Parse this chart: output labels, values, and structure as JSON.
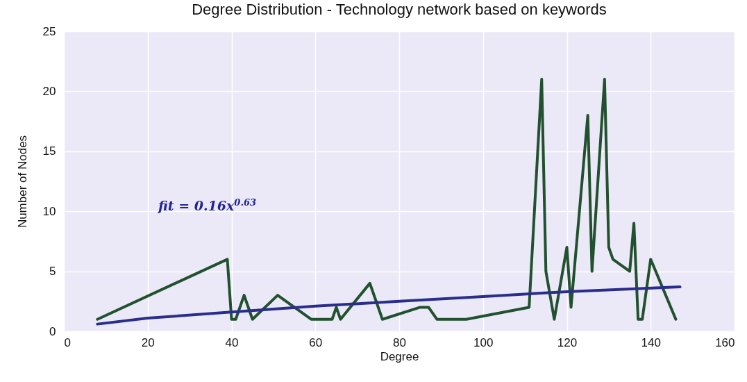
{
  "chart_data": {
    "type": "line",
    "title": "Degree Distribution - Technology network based on keywords",
    "xlabel": "Degree",
    "ylabel": "Number of Nodes",
    "series": [
      {
        "color": "#22512f",
        "x": [
          8,
          39,
          40,
          41,
          43,
          45,
          51,
          55,
          59,
          64,
          65,
          66,
          73,
          76,
          85,
          87,
          89,
          96,
          111,
          114,
          115,
          117,
          120,
          121,
          125,
          126,
          129,
          130,
          131,
          135,
          136,
          137,
          138,
          140,
          146
        ],
        "values": [
          1,
          6,
          1,
          1,
          3,
          1,
          3,
          2,
          1,
          1,
          2,
          1,
          4,
          1,
          2,
          2,
          1,
          1,
          2,
          21,
          5,
          1,
          7,
          2,
          18,
          5,
          21,
          7,
          6,
          5,
          9,
          1,
          1,
          6,
          1
        ]
      },
      {
        "color": "#2b2d8c",
        "x": [
          8,
          20,
          40,
          60,
          80,
          100,
          120,
          147
        ],
        "values": [
          0.6,
          1.1,
          1.6,
          2.1,
          2.5,
          2.9,
          3.3,
          3.7
        ]
      }
    ],
    "annotations": [
      "fit = 0.16x$^{0.63}$"
    ],
    "xlim": [
      0,
      160
    ],
    "ylim": [
      0,
      25
    ],
    "xticks": [
      0,
      20,
      40,
      60,
      80,
      100,
      120,
      140,
      160
    ],
    "yticks": [
      0,
      5,
      10,
      15,
      20,
      25
    ],
    "grid": true,
    "marker": "none",
    "line_style": "solid"
  }
}
